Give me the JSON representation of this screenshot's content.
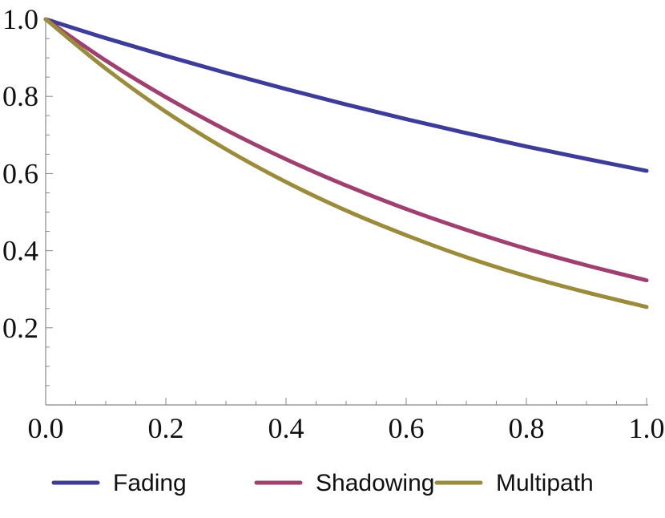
{
  "chart_data": {
    "type": "line",
    "title": "",
    "xlabel": "",
    "ylabel": "",
    "xlim": [
      0,
      1
    ],
    "ylim": [
      0,
      1
    ],
    "x_ticks": [
      "0.0",
      "0.2",
      "0.4",
      "0.6",
      "0.8",
      "1.0"
    ],
    "y_ticks": [
      "0.2",
      "0.4",
      "0.6",
      "0.8",
      "1.0"
    ],
    "grid": false,
    "legend_position": "bottom",
    "x": [
      0.0,
      0.1,
      0.2,
      0.3,
      0.4,
      0.5,
      0.6,
      0.7,
      0.8,
      0.9,
      1.0
    ],
    "series": [
      {
        "name": "Fading",
        "color": "#3d3d99",
        "values": [
          1.0,
          0.951,
          0.905,
          0.861,
          0.819,
          0.779,
          0.741,
          0.705,
          0.67,
          0.638,
          0.607
        ]
      },
      {
        "name": "Shadowing",
        "color": "#a04070",
        "values": [
          1.0,
          0.893,
          0.798,
          0.713,
          0.637,
          0.569,
          0.508,
          0.454,
          0.405,
          0.362,
          0.323
        ]
      },
      {
        "name": "Multipath",
        "color": "#9a8c3a",
        "values": [
          1.0,
          0.872,
          0.76,
          0.663,
          0.578,
          0.504,
          0.44,
          0.383,
          0.334,
          0.292,
          0.254
        ]
      }
    ]
  }
}
